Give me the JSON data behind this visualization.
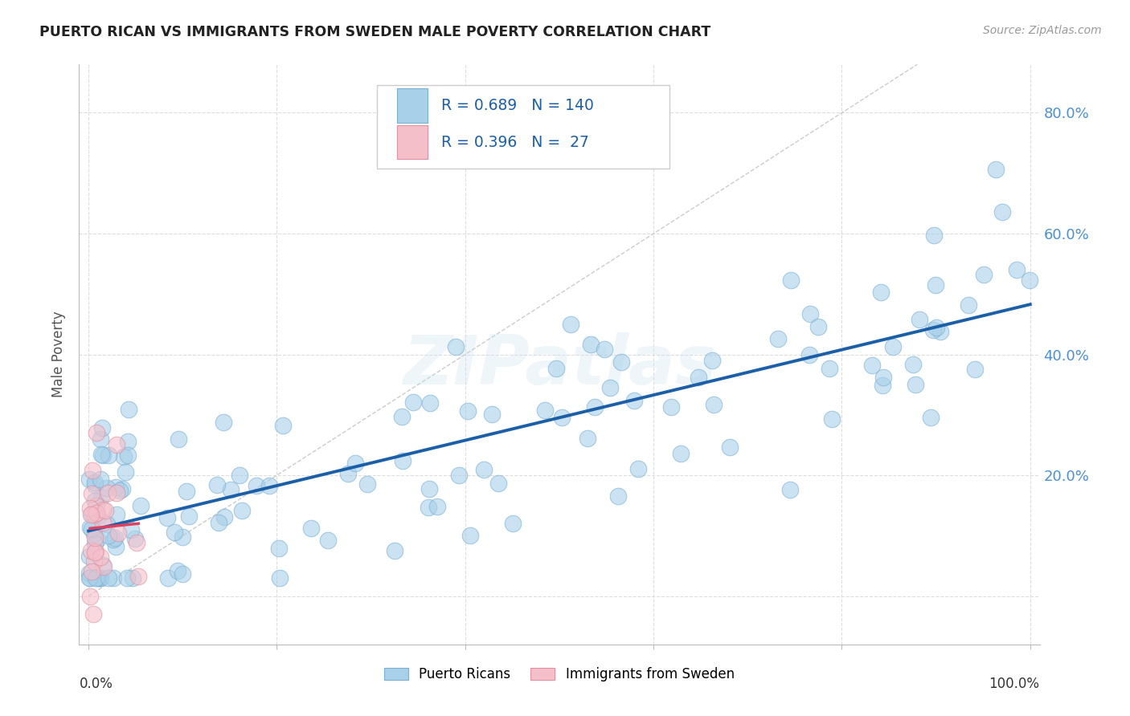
{
  "title": "PUERTO RICAN VS IMMIGRANTS FROM SWEDEN MALE POVERTY CORRELATION CHART",
  "source": "Source: ZipAtlas.com",
  "ylabel": "Male Poverty",
  "yticks": [
    0.0,
    0.2,
    0.4,
    0.6,
    0.8
  ],
  "ytick_labels": [
    "",
    "20.0%",
    "40.0%",
    "60.0%",
    "80.0%"
  ],
  "xlim": [
    -0.01,
    1.01
  ],
  "ylim": [
    -0.08,
    0.88
  ],
  "blue_color": "#a8d0e8",
  "blue_edge_color": "#7ab0d4",
  "pink_color": "#f5bfca",
  "pink_edge_color": "#e090a0",
  "blue_line_color": "#1a5fa8",
  "pink_line_color": "#e04060",
  "diagonal_color": "#cccccc",
  "grid_color": "#dddddd",
  "watermark": "ZIPatlas",
  "background_color": "#ffffff",
  "right_tick_color": "#4a90d9",
  "legend_r1": "R = 0.689",
  "legend_n1": "N = 140",
  "legend_r2": "R = 0.396",
  "legend_n2": "N =  27"
}
